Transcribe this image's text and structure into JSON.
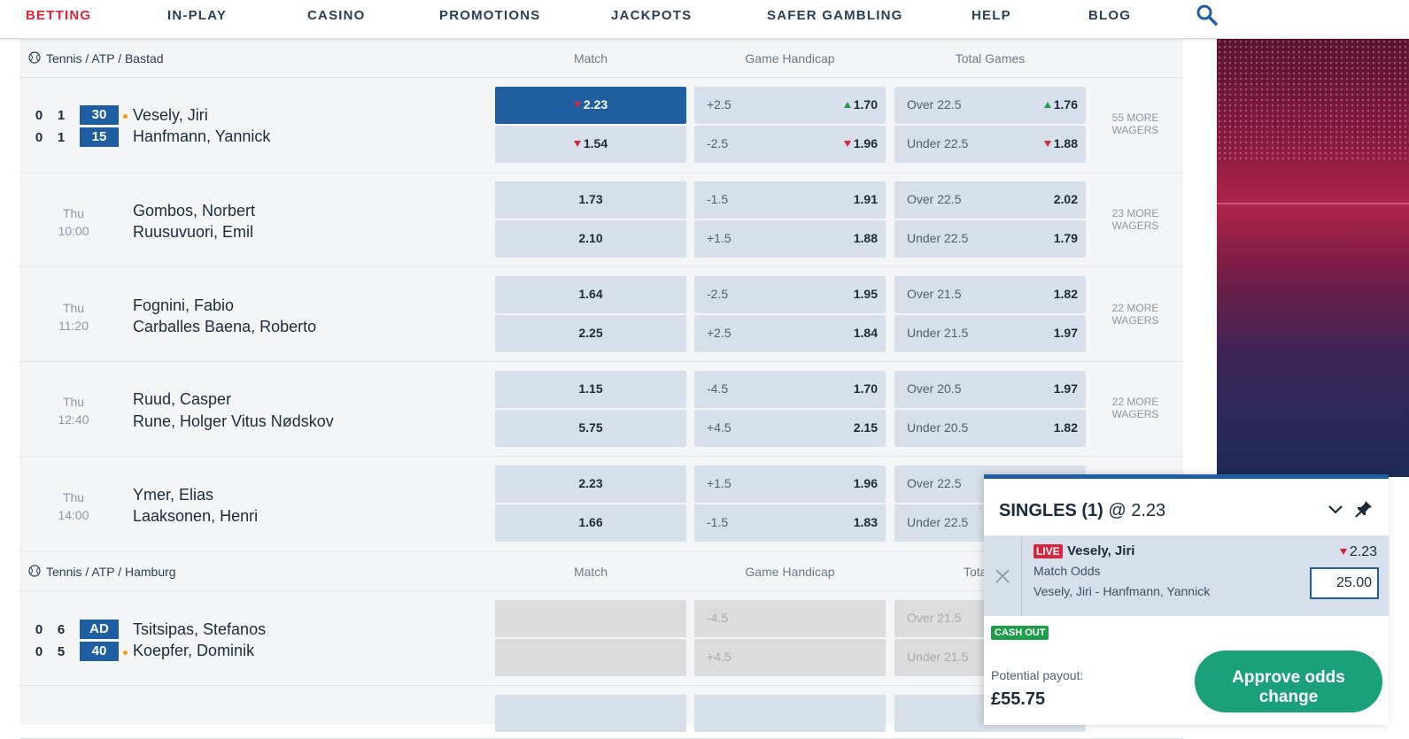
{
  "nav": {
    "items": [
      {
        "label": "BETTING",
        "active": true
      },
      {
        "label": "IN-PLAY"
      },
      {
        "label": "CASINO"
      },
      {
        "label": "PROMOTIONS"
      },
      {
        "label": "JACKPOTS"
      },
      {
        "label": "SAFER GAMBLING"
      },
      {
        "label": "HELP"
      },
      {
        "label": "BLOG"
      }
    ],
    "search_icon": "search-icon"
  },
  "columns": {
    "match": "Match",
    "handicap": "Game Handicap",
    "total": "Total Games",
    "total_truncated": "Tota"
  },
  "sections": [
    {
      "title": "Tennis / ATP / Bastad",
      "events": [
        {
          "live": true,
          "p1": {
            "name": "Vesely, Jiri",
            "sets": "0",
            "games": "1",
            "points": "30",
            "serving": true
          },
          "p2": {
            "name": "Hanfmann, Yannick",
            "sets": "0",
            "games": "1",
            "points": "15"
          },
          "match": [
            {
              "odds": "2.23",
              "trend": "down",
              "selected": true
            },
            {
              "odds": "1.54",
              "trend": "down"
            }
          ],
          "handicap": [
            {
              "line": "+2.5",
              "odds": "1.70",
              "trend": "up"
            },
            {
              "line": "-2.5",
              "odds": "1.96",
              "trend": "down"
            }
          ],
          "total": [
            {
              "line": "Over 22.5",
              "odds": "1.76",
              "trend": "up"
            },
            {
              "line": "Under 22.5",
              "odds": "1.88",
              "trend": "down"
            }
          ],
          "more": [
            "55 MORE",
            "WAGERS"
          ]
        },
        {
          "day": "Thu",
          "time": "10:00",
          "p1": {
            "name": "Gombos, Norbert"
          },
          "p2": {
            "name": "Ruusuvuori, Emil"
          },
          "match": [
            {
              "odds": "1.73"
            },
            {
              "odds": "2.10"
            }
          ],
          "handicap": [
            {
              "line": "-1.5",
              "odds": "1.91"
            },
            {
              "line": "+1.5",
              "odds": "1.88"
            }
          ],
          "total": [
            {
              "line": "Over 22.5",
              "odds": "2.02"
            },
            {
              "line": "Under 22.5",
              "odds": "1.79"
            }
          ],
          "more": [
            "23 MORE",
            "WAGERS"
          ]
        },
        {
          "day": "Thu",
          "time": "11:20",
          "p1": {
            "name": "Fognini, Fabio"
          },
          "p2": {
            "name": "Carballes Baena, Roberto"
          },
          "match": [
            {
              "odds": "1.64"
            },
            {
              "odds": "2.25"
            }
          ],
          "handicap": [
            {
              "line": "-2.5",
              "odds": "1.95"
            },
            {
              "line": "+2.5",
              "odds": "1.84"
            }
          ],
          "total": [
            {
              "line": "Over 21.5",
              "odds": "1.82"
            },
            {
              "line": "Under 21.5",
              "odds": "1.97"
            }
          ],
          "more": [
            "22 MORE",
            "WAGERS"
          ]
        },
        {
          "day": "Thu",
          "time": "12:40",
          "p1": {
            "name": "Ruud, Casper"
          },
          "p2": {
            "name": "Rune, Holger Vitus Nødskov"
          },
          "match": [
            {
              "odds": "1.15"
            },
            {
              "odds": "5.75"
            }
          ],
          "handicap": [
            {
              "line": "-4.5",
              "odds": "1.70"
            },
            {
              "line": "+4.5",
              "odds": "2.15"
            }
          ],
          "total": [
            {
              "line": "Over 20.5",
              "odds": "1.97"
            },
            {
              "line": "Under 20.5",
              "odds": "1.82"
            }
          ],
          "more": [
            "22 MORE",
            "WAGERS"
          ]
        },
        {
          "day": "Thu",
          "time": "14:00",
          "p1": {
            "name": "Ymer, Elias"
          },
          "p2": {
            "name": "Laaksonen, Henri"
          },
          "match": [
            {
              "odds": "2.23"
            },
            {
              "odds": "1.66"
            }
          ],
          "handicap": [
            {
              "line": "+1.5",
              "odds": "1.96"
            },
            {
              "line": "-1.5",
              "odds": "1.83"
            }
          ],
          "total": [
            {
              "line": "Over 22.5",
              "odds": ""
            },
            {
              "line": "Under 22.5",
              "odds": ""
            }
          ],
          "more": []
        }
      ]
    },
    {
      "title": "Tennis / ATP / Hamburg",
      "events": [
        {
          "live": true,
          "p1": {
            "name": "Tsitsipas, Stefanos",
            "sets": "0",
            "games": "6",
            "points": "AD"
          },
          "p2": {
            "name": "Koepfer, Dominik",
            "sets": "0",
            "games": "5",
            "points": "40",
            "serving": true
          },
          "suspended": true,
          "handicap": [
            {
              "line": "-4.5"
            },
            {
              "line": "+4.5"
            }
          ],
          "total": [
            {
              "line": "Over 21.5"
            },
            {
              "line": "Under 21.5"
            }
          ]
        }
      ]
    }
  ],
  "betslip": {
    "title": "SINGLES (1)",
    "title_odds": "@ 2.23",
    "live_badge": "LIVE",
    "selection": "Vesely, Jiri",
    "odds": "2.23",
    "market": "Match Odds",
    "event": "Vesely, Jiri - Hanfmann, Yannick",
    "stake": "25.00",
    "cashout": "CASH OUT",
    "payout_label": "Potential payout:",
    "payout_value": "£55.75",
    "approve_line1": "Approve odds",
    "approve_line2": "change"
  }
}
